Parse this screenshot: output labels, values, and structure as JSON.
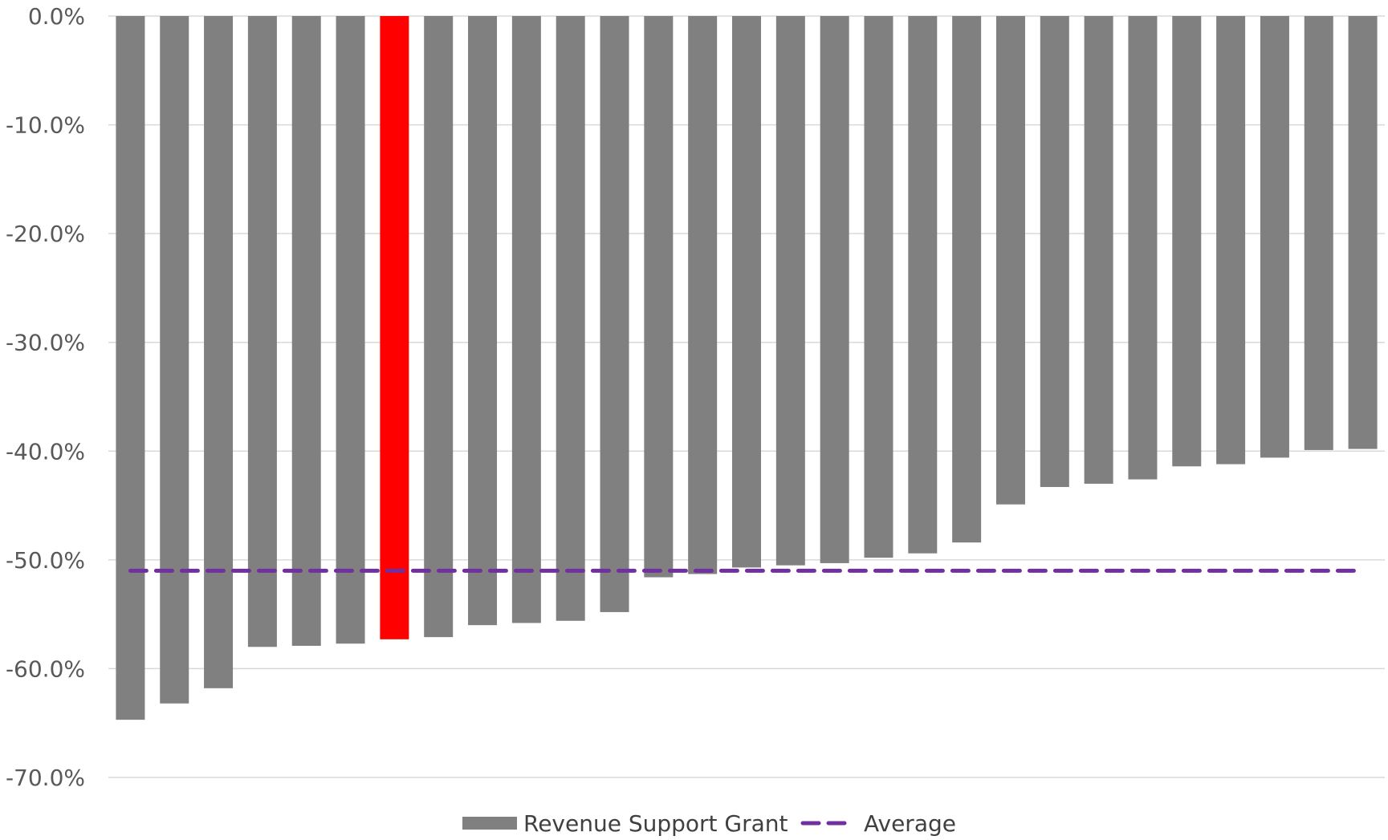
{
  "chart_data": {
    "type": "bar",
    "title": "",
    "xlabel": "",
    "ylabel": "",
    "ylim": [
      -70,
      0
    ],
    "yticks": [
      "0.0%",
      "-10.0%",
      "-20.0%",
      "-30.0%",
      "-40.0%",
      "-50.0%",
      "-60.0%",
      "-70.0%"
    ],
    "ytick_values": [
      0,
      -10,
      -20,
      -30,
      -40,
      -50,
      -60,
      -70
    ],
    "grid": "horizontal",
    "legend_position": "bottom",
    "series": [
      {
        "name": "Revenue Support Grant",
        "type": "bar",
        "color": "#808080",
        "highlight_color": "#ff0000",
        "highlight_index": 6,
        "values": [
          -64.7,
          -63.2,
          -61.8,
          -58.0,
          -57.9,
          -57.7,
          -57.3,
          -57.1,
          -56.0,
          -55.8,
          -55.6,
          -54.8,
          -51.6,
          -51.3,
          -50.7,
          -50.5,
          -50.3,
          -49.8,
          -49.4,
          -48.4,
          -44.9,
          -43.3,
          -43.0,
          -42.6,
          -41.4,
          -41.2,
          -40.6,
          -39.9,
          -39.8
        ]
      },
      {
        "name": "Average",
        "type": "line",
        "style": "dashed",
        "color": "#7030a0",
        "value": -51.0
      }
    ]
  }
}
